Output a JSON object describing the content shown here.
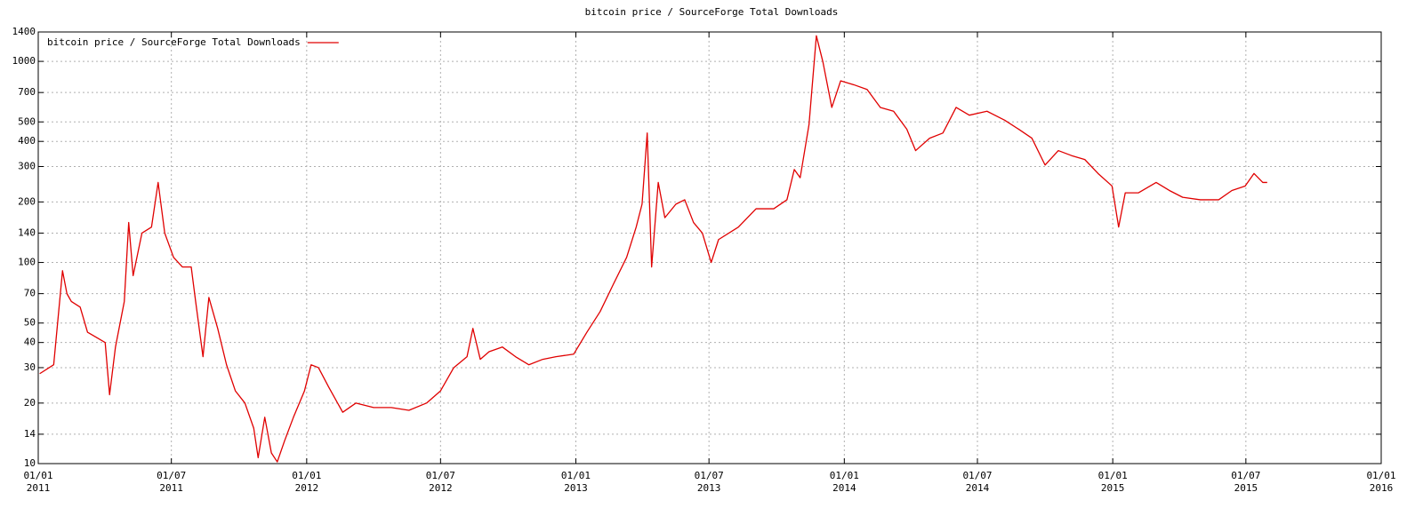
{
  "chart_data": {
    "type": "line",
    "title": "bitcoin price / SourceForge Total Downloads",
    "x": [
      "2011-01-03",
      "2011-01-22",
      "2011-02-03",
      "2011-02-09",
      "2011-02-15",
      "2011-02-27",
      "2011-03-09",
      "2011-03-23",
      "2011-04-02",
      "2011-04-08",
      "2011-04-16",
      "2011-04-28",
      "2011-05-04",
      "2011-05-10",
      "2011-05-22",
      "2011-06-04",
      "2011-06-13",
      "2011-06-22",
      "2011-07-04",
      "2011-07-16",
      "2011-07-28",
      "2011-08-03",
      "2011-08-13",
      "2011-08-21",
      "2011-09-02",
      "2011-09-14",
      "2011-09-26",
      "2011-10-09",
      "2011-10-21",
      "2011-10-27",
      "2011-11-05",
      "2011-11-14",
      "2011-11-22",
      "2011-12-02",
      "2011-12-14",
      "2011-12-29",
      "2012-01-07",
      "2012-01-17",
      "2012-01-31",
      "2012-02-19",
      "2012-03-08",
      "2012-04-01",
      "2012-04-25",
      "2012-05-19",
      "2012-06-12",
      "2012-07-01",
      "2012-07-19",
      "2012-08-06",
      "2012-08-14",
      "2012-08-24",
      "2012-09-05",
      "2012-09-23",
      "2012-10-11",
      "2012-10-29",
      "2012-11-17",
      "2012-12-05",
      "2012-12-29",
      "2013-01-16",
      "2013-02-03",
      "2013-02-21",
      "2013-03-11",
      "2013-03-24",
      "2013-04-01",
      "2013-04-08",
      "2013-04-14",
      "2013-04-23",
      "2013-05-02",
      "2013-05-17",
      "2013-05-29",
      "2013-06-10",
      "2013-06-22",
      "2013-07-04",
      "2013-07-14",
      "2013-08-10",
      "2013-09-03",
      "2013-09-27",
      "2013-10-15",
      "2013-10-25",
      "2013-11-02",
      "2013-11-14",
      "2013-11-24",
      "2013-12-03",
      "2013-12-15",
      "2013-12-27",
      "2014-01-14",
      "2014-02-01",
      "2014-02-19",
      "2014-03-09",
      "2014-03-27",
      "2014-04-08",
      "2014-04-27",
      "2014-05-15",
      "2014-06-02",
      "2014-06-20",
      "2014-07-14",
      "2014-08-07",
      "2014-08-26",
      "2014-09-13",
      "2014-10-01",
      "2014-10-19",
      "2014-11-06",
      "2014-11-24",
      "2014-12-12",
      "2014-12-31",
      "2015-01-09",
      "2015-01-18",
      "2015-02-05",
      "2015-03-01",
      "2015-03-19",
      "2015-04-06",
      "2015-04-30",
      "2015-05-25",
      "2015-06-12",
      "2015-06-30",
      "2015-07-12",
      "2015-07-24",
      "2015-07-30"
    ],
    "series": [
      {
        "name": "bitcoin price / SourceForge Total Downloads",
        "color": "#e00000",
        "values": [
          28,
          31,
          91,
          70,
          64,
          60,
          45,
          42,
          40,
          22,
          38,
          64,
          158,
          86,
          140,
          150,
          250,
          140,
          106,
          95,
          95,
          64,
          34,
          67,
          47,
          31,
          23,
          20,
          15,
          10.7,
          17,
          11.3,
          10.2,
          13,
          17,
          23,
          31,
          30,
          24,
          18,
          20,
          19,
          19,
          18.4,
          20,
          23,
          30,
          34,
          47,
          33,
          36,
          38,
          34,
          31,
          33,
          34,
          35,
          45,
          57,
          78,
          106,
          150,
          195,
          440,
          95,
          250,
          167,
          195,
          205,
          158,
          140,
          100,
          130,
          150,
          185,
          185,
          205,
          290,
          264,
          485,
          1340,
          990,
          590,
          800,
          765,
          725,
          590,
          565,
          460,
          360,
          415,
          440,
          590,
          540,
          565,
          510,
          460,
          415,
          305,
          360,
          340,
          325,
          277,
          240,
          150,
          222,
          222,
          250,
          228,
          211,
          205,
          205,
          228,
          240,
          277,
          250,
          250
        ]
      }
    ],
    "xlim": [
      "2011-01-01",
      "2016-01-01"
    ],
    "xticks": [
      {
        "value": "2011-01-01",
        "label": [
          "01/01",
          "2011"
        ]
      },
      {
        "value": "2011-07-01",
        "label": [
          "01/07",
          "2011"
        ]
      },
      {
        "value": "2012-01-01",
        "label": [
          "01/01",
          "2012"
        ]
      },
      {
        "value": "2012-07-01",
        "label": [
          "01/07",
          "2012"
        ]
      },
      {
        "value": "2013-01-01",
        "label": [
          "01/01",
          "2013"
        ]
      },
      {
        "value": "2013-07-01",
        "label": [
          "01/07",
          "2013"
        ]
      },
      {
        "value": "2014-01-01",
        "label": [
          "01/01",
          "2014"
        ]
      },
      {
        "value": "2014-07-01",
        "label": [
          "01/07",
          "2014"
        ]
      },
      {
        "value": "2015-01-01",
        "label": [
          "01/01",
          "2015"
        ]
      },
      {
        "value": "2015-07-01",
        "label": [
          "01/07",
          "2015"
        ]
      },
      {
        "value": "2016-01-01",
        "label": [
          "01/01",
          "2016"
        ]
      }
    ],
    "ylim": [
      10,
      1400
    ],
    "yticks": [
      10,
      14,
      20,
      30,
      40,
      50,
      70,
      100,
      140,
      200,
      300,
      400,
      500,
      700,
      1000,
      1400
    ],
    "log_y": true,
    "grid": true,
    "legend": "top-left"
  }
}
